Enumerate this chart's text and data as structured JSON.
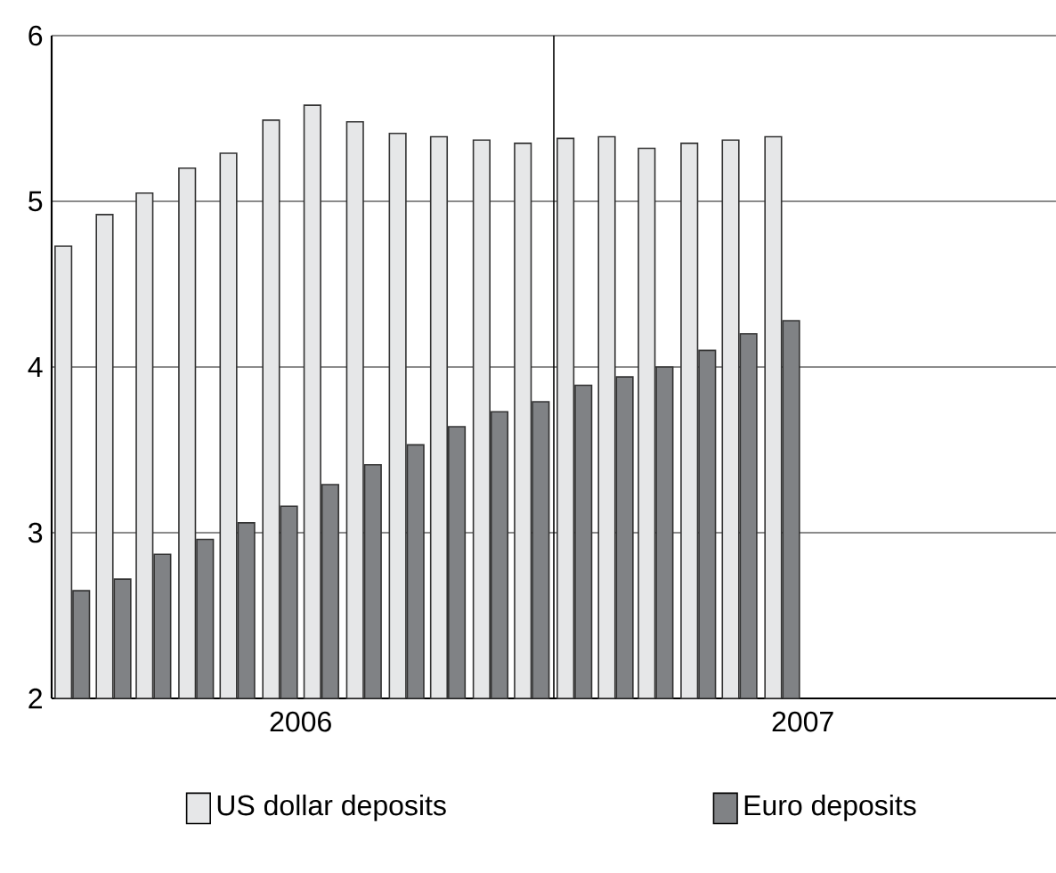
{
  "chart_data": {
    "type": "bar",
    "x": [
      "2006-01-16",
      "2006-02-15",
      "2006-03-16",
      "2006-04-16",
      "2006-05-16",
      "2006-06-16",
      "2006-07-16",
      "2006-08-16",
      "2006-09-16",
      "2006-10-16",
      "2006-11-16",
      "2006-12-16",
      "2007-01-16",
      "2007-02-15",
      "2007-03-16",
      "2007-04-16",
      "2007-05-16",
      "2007-06-16"
    ],
    "series": [
      {
        "name": "US dollar deposits",
        "color": "#e6e7e8",
        "values": [
          4.73,
          4.92,
          5.05,
          5.2,
          5.29,
          5.49,
          5.58,
          5.48,
          5.41,
          5.39,
          5.37,
          5.35,
          5.38,
          5.39,
          5.32,
          5.35,
          5.37,
          5.39
        ]
      },
      {
        "name": "Euro deposits",
        "color": "#808285",
        "values": [
          2.65,
          2.72,
          2.87,
          2.96,
          3.06,
          3.16,
          3.29,
          3.41,
          3.53,
          3.64,
          3.73,
          3.79,
          3.89,
          3.94,
          4.0,
          4.1,
          4.2,
          4.28
        ]
      }
    ],
    "xlim": [
      "2006-01-01",
      "2008-01-01"
    ],
    "xticks": [
      {
        "value": "2006-07-01",
        "label": "2006"
      },
      {
        "value": "2007-07-01",
        "label": "2007"
      }
    ],
    "ylim": [
      2,
      6
    ],
    "yticks": [
      2,
      3,
      4,
      5,
      6
    ],
    "ref_lines": [
      {
        "axis": "x",
        "value": "2007-01-01"
      }
    ],
    "grid": "y",
    "legend": "bottom"
  }
}
